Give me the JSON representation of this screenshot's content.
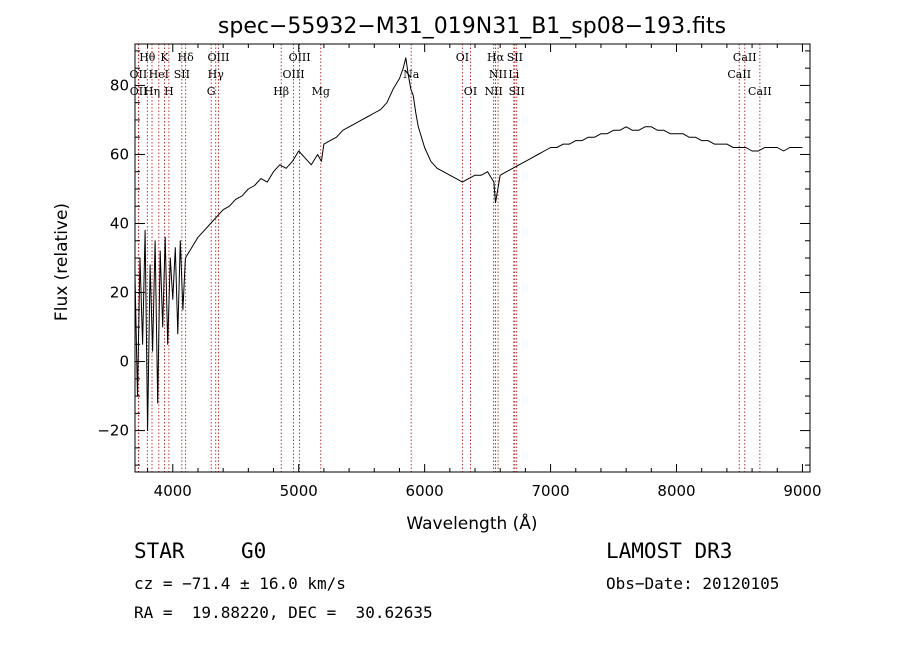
{
  "chart_data": {
    "type": "line",
    "title": "spec−55932−M31_019N31_B1_sp08−193.fits",
    "xlabel": "Wavelength (Å)",
    "ylabel": "Flux (relative)",
    "xlim": [
      3700,
      9060
    ],
    "ylim": [
      -32,
      92
    ],
    "xticks": [
      4000,
      5000,
      6000,
      7000,
      8000,
      9000
    ],
    "xtick_labels": [
      "4000",
      "5000",
      "6000",
      "7000",
      "8000",
      "9000"
    ],
    "yticks": [
      -20,
      0,
      20,
      40,
      60,
      80
    ],
    "ytick_labels": [
      "−20",
      "0",
      "20",
      "40",
      "60",
      "80"
    ],
    "series": [
      {
        "name": "spectrum",
        "x": [
          3700,
          3720,
          3740,
          3760,
          3780,
          3800,
          3820,
          3840,
          3860,
          3880,
          3900,
          3920,
          3940,
          3960,
          3980,
          4000,
          4020,
          4040,
          4060,
          4080,
          4100,
          4150,
          4200,
          4250,
          4300,
          4350,
          4400,
          4450,
          4500,
          4550,
          4600,
          4650,
          4700,
          4750,
          4800,
          4850,
          4900,
          4950,
          5000,
          5050,
          5100,
          5150,
          5180,
          5200,
          5250,
          5300,
          5350,
          5400,
          5450,
          5500,
          5550,
          5600,
          5650,
          5700,
          5750,
          5800,
          5830,
          5850,
          5870,
          5890,
          5910,
          5930,
          5950,
          6000,
          6050,
          6100,
          6150,
          6200,
          6250,
          6300,
          6350,
          6400,
          6450,
          6500,
          6550,
          6563,
          6600,
          6650,
          6700,
          6750,
          6800,
          6850,
          6900,
          6950,
          7000,
          7050,
          7100,
          7150,
          7200,
          7250,
          7300,
          7350,
          7400,
          7450,
          7500,
          7550,
          7600,
          7650,
          7700,
          7750,
          7800,
          7850,
          7900,
          7950,
          8000,
          8050,
          8100,
          8150,
          8200,
          8250,
          8300,
          8350,
          8400,
          8450,
          8500,
          8550,
          8600,
          8650,
          8700,
          8750,
          8800,
          8850,
          8900,
          8950,
          9000
        ],
        "y": [
          25,
          -10,
          30,
          5,
          38,
          -20,
          28,
          3,
          35,
          -12,
          32,
          10,
          36,
          5,
          30,
          18,
          33,
          8,
          35,
          15,
          30,
          33,
          36,
          38,
          40,
          42,
          44,
          45,
          47,
          48,
          50,
          51,
          53,
          52,
          55,
          57,
          56,
          58,
          61,
          59,
          57,
          60,
          58,
          63,
          64,
          65,
          67,
          68,
          69,
          70,
          71,
          72,
          73,
          75,
          79,
          82,
          85,
          88,
          83,
          79,
          77,
          72,
          68,
          62,
          58,
          56,
          55,
          54,
          53,
          52,
          53,
          54,
          54,
          55,
          52,
          46,
          54,
          55,
          56,
          57,
          58,
          59,
          60,
          61,
          62,
          62,
          63,
          63,
          64,
          64,
          65,
          65,
          66,
          66,
          67,
          67,
          68,
          67,
          67,
          68,
          68,
          67,
          67,
          66,
          66,
          66,
          65,
          65,
          64,
          64,
          63,
          63,
          63,
          62,
          62,
          62,
          61,
          61,
          62,
          62,
          62,
          61,
          62,
          62,
          62
        ]
      }
    ],
    "line_markers": [
      {
        "name": "OII",
        "wavelength": 3727,
        "row": 1
      },
      {
        "name": "OII",
        "wavelength": 3729,
        "row": 2
      },
      {
        "name": "Hθ",
        "wavelength": 3798,
        "row": 0
      },
      {
        "name": "Hη",
        "wavelength": 3835,
        "row": 2
      },
      {
        "name": "HeI",
        "wavelength": 3889,
        "row": 1
      },
      {
        "name": "K",
        "wavelength": 3934,
        "row": 0
      },
      {
        "name": "H",
        "wavelength": 3969,
        "row": 2
      },
      {
        "name": "SII",
        "wavelength": 4072,
        "row": 1
      },
      {
        "name": "Hδ",
        "wavelength": 4102,
        "row": 0
      },
      {
        "name": "G",
        "wavelength": 4305,
        "row": 2
      },
      {
        "name": "Hγ",
        "wavelength": 4341,
        "row": 1
      },
      {
        "name": "OIII",
        "wavelength": 4363,
        "row": 0
      },
      {
        "name": "Hβ",
        "wavelength": 4861,
        "row": 2
      },
      {
        "name": "OIII",
        "wavelength": 4959,
        "row": 1
      },
      {
        "name": "OIII",
        "wavelength": 5007,
        "row": 0
      },
      {
        "name": "Mg",
        "wavelength": 5175,
        "row": 2
      },
      {
        "name": "Na",
        "wavelength": 5893,
        "row": 1
      },
      {
        "name": "OI",
        "wavelength": 6300,
        "row": 0
      },
      {
        "name": "OI",
        "wavelength": 6364,
        "row": 2
      },
      {
        "name": "NII",
        "wavelength": 6548,
        "row": 2
      },
      {
        "name": "Hα",
        "wavelength": 6563,
        "row": 0
      },
      {
        "name": "NII",
        "wavelength": 6583,
        "row": 1
      },
      {
        "name": "Li",
        "wavelength": 6708,
        "row": 1
      },
      {
        "name": "SII",
        "wavelength": 6716,
        "row": 0
      },
      {
        "name": "SII",
        "wavelength": 6731,
        "row": 2
      },
      {
        "name": "CaII",
        "wavelength": 8498,
        "row": 1
      },
      {
        "name": "CaII",
        "wavelength": 8542,
        "row": 0
      },
      {
        "name": "CaII",
        "wavelength": 8662,
        "row": 2
      }
    ]
  },
  "info": {
    "class": "STAR",
    "subclass": "G0",
    "survey": "LAMOST DR3",
    "cz": "cz = −71.4 ± 16.0 km/s",
    "obs_date": "Obs−Date: 20120105",
    "radec": "RA =  19.88220, DEC =  30.62635"
  },
  "colors": {
    "marker_line": "#b22222",
    "spectrum": "#000000",
    "axes": "#000000"
  }
}
